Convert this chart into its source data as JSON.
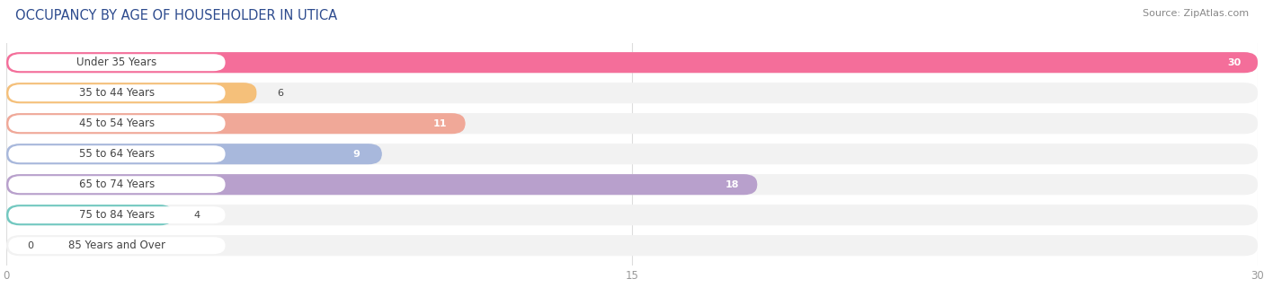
{
  "title": "OCCUPANCY BY AGE OF HOUSEHOLDER IN UTICA",
  "source": "Source: ZipAtlas.com",
  "categories": [
    "Under 35 Years",
    "35 to 44 Years",
    "45 to 54 Years",
    "55 to 64 Years",
    "65 to 74 Years",
    "75 to 84 Years",
    "85 Years and Over"
  ],
  "values": [
    30,
    6,
    11,
    9,
    18,
    4,
    0
  ],
  "bar_colors": [
    "#F46E9A",
    "#F5C07A",
    "#F0A898",
    "#A8B8DC",
    "#B8A0CC",
    "#72C8C0",
    "#C0B8E0"
  ],
  "bar_bg_color": "#F2F2F2",
  "value_badge_colors": [
    "#F46E9A",
    "#F5C07A",
    "#F0A898",
    "#A8B8DC",
    "#B8A0CC",
    "#72C8C0",
    "#C0B8E0"
  ],
  "xlim": [
    0,
    30
  ],
  "xticks": [
    0,
    15,
    30
  ],
  "bar_height": 0.68,
  "fig_width": 14.06,
  "fig_height": 3.4,
  "title_fontsize": 10.5,
  "label_fontsize": 8.5,
  "value_fontsize": 8,
  "source_fontsize": 8,
  "background_color": "#FFFFFF",
  "title_color": "#2D4B8E",
  "label_color": "#444444",
  "grid_color": "#DDDDDD",
  "tick_color": "#999999"
}
